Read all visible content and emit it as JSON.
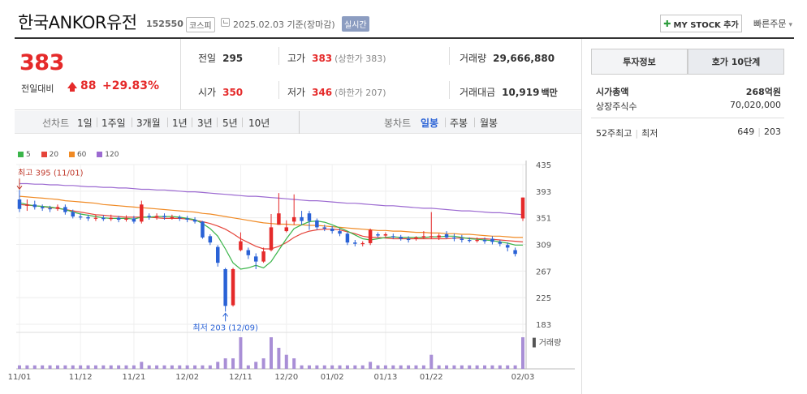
{
  "header": {
    "name": "한국ANKOR유전",
    "code": "152550",
    "market": "코스피",
    "date": "2025.02.03",
    "date_basis": "기준(장마감)",
    "live_badge": "실시간",
    "mystock_label": "MY STOCK 추가",
    "quick_order_label": "빠른주문"
  },
  "price": {
    "current": "383",
    "change_label": "전일대비",
    "change": "88",
    "change_pct": "+29.83%"
  },
  "summary": {
    "prev_close_label": "전일",
    "prev_close": "295",
    "high_label": "고가",
    "high": "383",
    "upper_limit": "(상한가 383)",
    "volume_label": "거래량",
    "volume": "29,666,880",
    "open_label": "시가",
    "open": "350",
    "low_label": "저가",
    "low": "346",
    "lower_limit": "(하한가 207)",
    "turnover_label": "거래대금",
    "turnover": "10,919",
    "turnover_unit": "백만"
  },
  "chart_toolbar": {
    "line_label": "선차트",
    "line_periods": [
      "1일",
      "1주일",
      "3개월",
      "1년",
      "3년",
      "5년",
      "10년"
    ],
    "candle_label": "봉차트",
    "candle_periods": [
      "일봉",
      "주봉",
      "월봉"
    ],
    "active_candle": "일봉"
  },
  "colors": {
    "up": "#e52a2a",
    "down": "#2a62d6",
    "ma5": "#3bb54a",
    "ma20": "#e5443a",
    "ma60": "#f08a24",
    "ma120": "#9c6ad1",
    "volume": "#a98fd6"
  },
  "side": {
    "tab_invest": "투자정보",
    "tab_quote": "호가 10단계",
    "market_cap_label": "시가총액",
    "market_cap": "268억원",
    "shares_label": "상장주식수",
    "shares": "70,020,000",
    "week52_label": "52주최고",
    "week52_low_label": "최저",
    "week52_high": "649",
    "week52_low": "203"
  },
  "chart_data": {
    "type": "candlestick",
    "legend": [
      "5",
      "20",
      "60",
      "120"
    ],
    "ylim": [
      183,
      435
    ],
    "yticks": [
      435,
      393,
      351,
      309,
      267,
      225,
      183
    ],
    "xticks": [
      "11/01",
      "11/12",
      "11/21",
      "12/02",
      "12/11",
      "12/20",
      "01/02",
      "01/13",
      "01/22",
      "02/03"
    ],
    "max_label": "최고 395 (11/01)",
    "min_label": "최저 203 (12/09)",
    "volume_label": "거래량",
    "candles": [
      {
        "o": 380,
        "c": 365,
        "h": 395,
        "l": 360
      },
      {
        "o": 370,
        "c": 372,
        "h": 380,
        "l": 362
      },
      {
        "o": 372,
        "c": 368,
        "h": 378,
        "l": 364
      },
      {
        "o": 368,
        "c": 366,
        "h": 372,
        "l": 362
      },
      {
        "o": 366,
        "c": 365,
        "h": 370,
        "l": 360
      },
      {
        "o": 365,
        "c": 368,
        "h": 372,
        "l": 362
      },
      {
        "o": 368,
        "c": 360,
        "h": 372,
        "l": 356
      },
      {
        "o": 360,
        "c": 353,
        "h": 364,
        "l": 350
      },
      {
        "o": 353,
        "c": 352,
        "h": 358,
        "l": 348
      },
      {
        "o": 352,
        "c": 350,
        "h": 356,
        "l": 346
      },
      {
        "o": 350,
        "c": 351,
        "h": 356,
        "l": 346
      },
      {
        "o": 351,
        "c": 349,
        "h": 355,
        "l": 346
      },
      {
        "o": 349,
        "c": 351,
        "h": 356,
        "l": 346
      },
      {
        "o": 351,
        "c": 348,
        "h": 354,
        "l": 344
      },
      {
        "o": 348,
        "c": 350,
        "h": 355,
        "l": 345
      },
      {
        "o": 350,
        "c": 345,
        "h": 354,
        "l": 342
      },
      {
        "o": 345,
        "c": 372,
        "h": 378,
        "l": 342
      },
      {
        "o": 354,
        "c": 352,
        "h": 358,
        "l": 348
      },
      {
        "o": 352,
        "c": 354,
        "h": 358,
        "l": 348
      },
      {
        "o": 354,
        "c": 352,
        "h": 358,
        "l": 348
      },
      {
        "o": 352,
        "c": 352,
        "h": 356,
        "l": 348
      },
      {
        "o": 352,
        "c": 350,
        "h": 355,
        "l": 346
      },
      {
        "o": 350,
        "c": 348,
        "h": 354,
        "l": 344
      },
      {
        "o": 348,
        "c": 345,
        "h": 352,
        "l": 342
      },
      {
        "o": 345,
        "c": 320,
        "h": 346,
        "l": 318
      },
      {
        "o": 322,
        "c": 312,
        "h": 325,
        "l": 308
      },
      {
        "o": 305,
        "c": 280,
        "h": 308,
        "l": 274
      },
      {
        "o": 270,
        "c": 212,
        "h": 272,
        "l": 203
      },
      {
        "o": 213,
        "c": 270,
        "h": 272,
        "l": 211
      },
      {
        "o": 300,
        "c": 314,
        "h": 328,
        "l": 298
      },
      {
        "o": 300,
        "c": 292,
        "h": 304,
        "l": 286
      },
      {
        "o": 290,
        "c": 282,
        "h": 295,
        "l": 270
      },
      {
        "o": 282,
        "c": 298,
        "h": 304,
        "l": 280
      },
      {
        "o": 300,
        "c": 336,
        "h": 357,
        "l": 298
      },
      {
        "o": 340,
        "c": 358,
        "h": 390,
        "l": 340
      },
      {
        "o": 330,
        "c": 336,
        "h": 347,
        "l": 328
      },
      {
        "o": 345,
        "c": 352,
        "h": 388,
        "l": 340
      },
      {
        "o": 352,
        "c": 346,
        "h": 362,
        "l": 340
      },
      {
        "o": 358,
        "c": 346,
        "h": 362,
        "l": 332
      },
      {
        "o": 347,
        "c": 336,
        "h": 350,
        "l": 332
      },
      {
        "o": 336,
        "c": 334,
        "h": 340,
        "l": 330
      },
      {
        "o": 334,
        "c": 330,
        "h": 338,
        "l": 326
      },
      {
        "o": 330,
        "c": 326,
        "h": 334,
        "l": 322
      },
      {
        "o": 326,
        "c": 312,
        "h": 328,
        "l": 308
      },
      {
        "o": 312,
        "c": 310,
        "h": 316,
        "l": 306
      },
      {
        "o": 310,
        "c": 311,
        "h": 314,
        "l": 306
      },
      {
        "o": 311,
        "c": 332,
        "h": 334,
        "l": 308
      },
      {
        "o": 325,
        "c": 323,
        "h": 328,
        "l": 320
      },
      {
        "o": 323,
        "c": 325,
        "h": 328,
        "l": 320
      },
      {
        "o": 322,
        "c": 321,
        "h": 326,
        "l": 318
      },
      {
        "o": 321,
        "c": 318,
        "h": 324,
        "l": 315
      },
      {
        "o": 318,
        "c": 316,
        "h": 322,
        "l": 312
      },
      {
        "o": 318,
        "c": 320,
        "h": 322,
        "l": 315
      },
      {
        "o": 320,
        "c": 322,
        "h": 330,
        "l": 318
      },
      {
        "o": 322,
        "c": 322,
        "h": 360,
        "l": 318
      },
      {
        "o": 320,
        "c": 323,
        "h": 326,
        "l": 316
      },
      {
        "o": 325,
        "c": 320,
        "h": 330,
        "l": 318
      },
      {
        "o": 320,
        "c": 318,
        "h": 326,
        "l": 314
      },
      {
        "o": 318,
        "c": 316,
        "h": 324,
        "l": 312
      },
      {
        "o": 316,
        "c": 315,
        "h": 320,
        "l": 312
      },
      {
        "o": 315,
        "c": 316,
        "h": 320,
        "l": 312
      },
      {
        "o": 316,
        "c": 314,
        "h": 320,
        "l": 310
      },
      {
        "o": 318,
        "c": 313,
        "h": 322,
        "l": 309
      },
      {
        "o": 313,
        "c": 310,
        "h": 316,
        "l": 306
      },
      {
        "o": 308,
        "c": 304,
        "h": 312,
        "l": 298
      },
      {
        "o": 300,
        "c": 294,
        "h": 304,
        "l": 290
      },
      {
        "o": 350,
        "c": 383,
        "h": 383,
        "l": 346
      }
    ],
    "ma5": [
      375,
      372,
      370,
      369,
      368,
      366,
      364,
      360,
      357,
      355,
      353,
      351,
      350,
      350,
      350,
      349,
      352,
      352,
      353,
      353,
      353,
      352,
      350,
      348,
      342,
      334,
      322,
      302,
      280,
      270,
      272,
      276,
      272,
      282,
      300,
      318,
      334,
      340,
      345,
      346,
      344,
      340,
      335,
      330,
      324,
      318,
      316,
      318,
      320,
      321,
      320,
      320,
      320,
      320,
      321,
      321,
      322,
      322,
      320,
      318,
      317,
      316,
      315,
      313,
      311,
      308,
      308
    ],
    "ma20": [
      372,
      371,
      370,
      369,
      367,
      366,
      364,
      362,
      360,
      358,
      356,
      355,
      354,
      353,
      352,
      352,
      352,
      352,
      351,
      350,
      350,
      350,
      349,
      347,
      345,
      342,
      338,
      333,
      326,
      318,
      312,
      306,
      302,
      302,
      306,
      312,
      320,
      326,
      330,
      332,
      333,
      333,
      332,
      329,
      326,
      322,
      320,
      320,
      319,
      318,
      318,
      318,
      318,
      318,
      318,
      318,
      318,
      319,
      319,
      319,
      318,
      318,
      317,
      316,
      315,
      314,
      313
    ],
    "ma60": [
      385,
      384,
      383,
      382,
      381,
      380,
      378,
      377,
      376,
      375,
      374,
      372,
      371,
      370,
      369,
      368,
      367,
      366,
      365,
      364,
      363,
      362,
      361,
      360,
      358,
      357,
      355,
      353,
      351,
      349,
      347,
      345,
      343,
      342,
      341,
      341,
      340,
      340,
      339,
      339,
      338,
      337,
      336,
      335,
      334,
      333,
      332,
      331,
      331,
      330,
      330,
      329,
      328,
      328,
      327,
      327,
      326,
      326,
      325,
      325,
      324,
      323,
      322,
      322,
      321,
      320,
      320
    ],
    "ma120": [
      405,
      405,
      404,
      404,
      403,
      403,
      402,
      402,
      401,
      400,
      400,
      399,
      399,
      398,
      398,
      397,
      396,
      396,
      395,
      395,
      394,
      393,
      392,
      392,
      391,
      390,
      389,
      388,
      387,
      386,
      385,
      385,
      384,
      383,
      382,
      381,
      380,
      379,
      378,
      378,
      377,
      376,
      375,
      374,
      374,
      373,
      372,
      371,
      370,
      370,
      369,
      368,
      367,
      366,
      366,
      365,
      364,
      363,
      362,
      362,
      361,
      360,
      359,
      359,
      358,
      357,
      356
    ],
    "volume": [
      1,
      1,
      1,
      1,
      1,
      1,
      1,
      1,
      1,
      1,
      1,
      1,
      1,
      1,
      1,
      1,
      2,
      1,
      1,
      1,
      1,
      1,
      1,
      1,
      1,
      1,
      2,
      3,
      3,
      9,
      1,
      2,
      3,
      9,
      6,
      4,
      3,
      1,
      1,
      1,
      1,
      1,
      1,
      1,
      1,
      1,
      2,
      1,
      1,
      1,
      1,
      1,
      1,
      1,
      4,
      1,
      1,
      1,
      1,
      1,
      1,
      1,
      1,
      1,
      1,
      1,
      9
    ]
  }
}
